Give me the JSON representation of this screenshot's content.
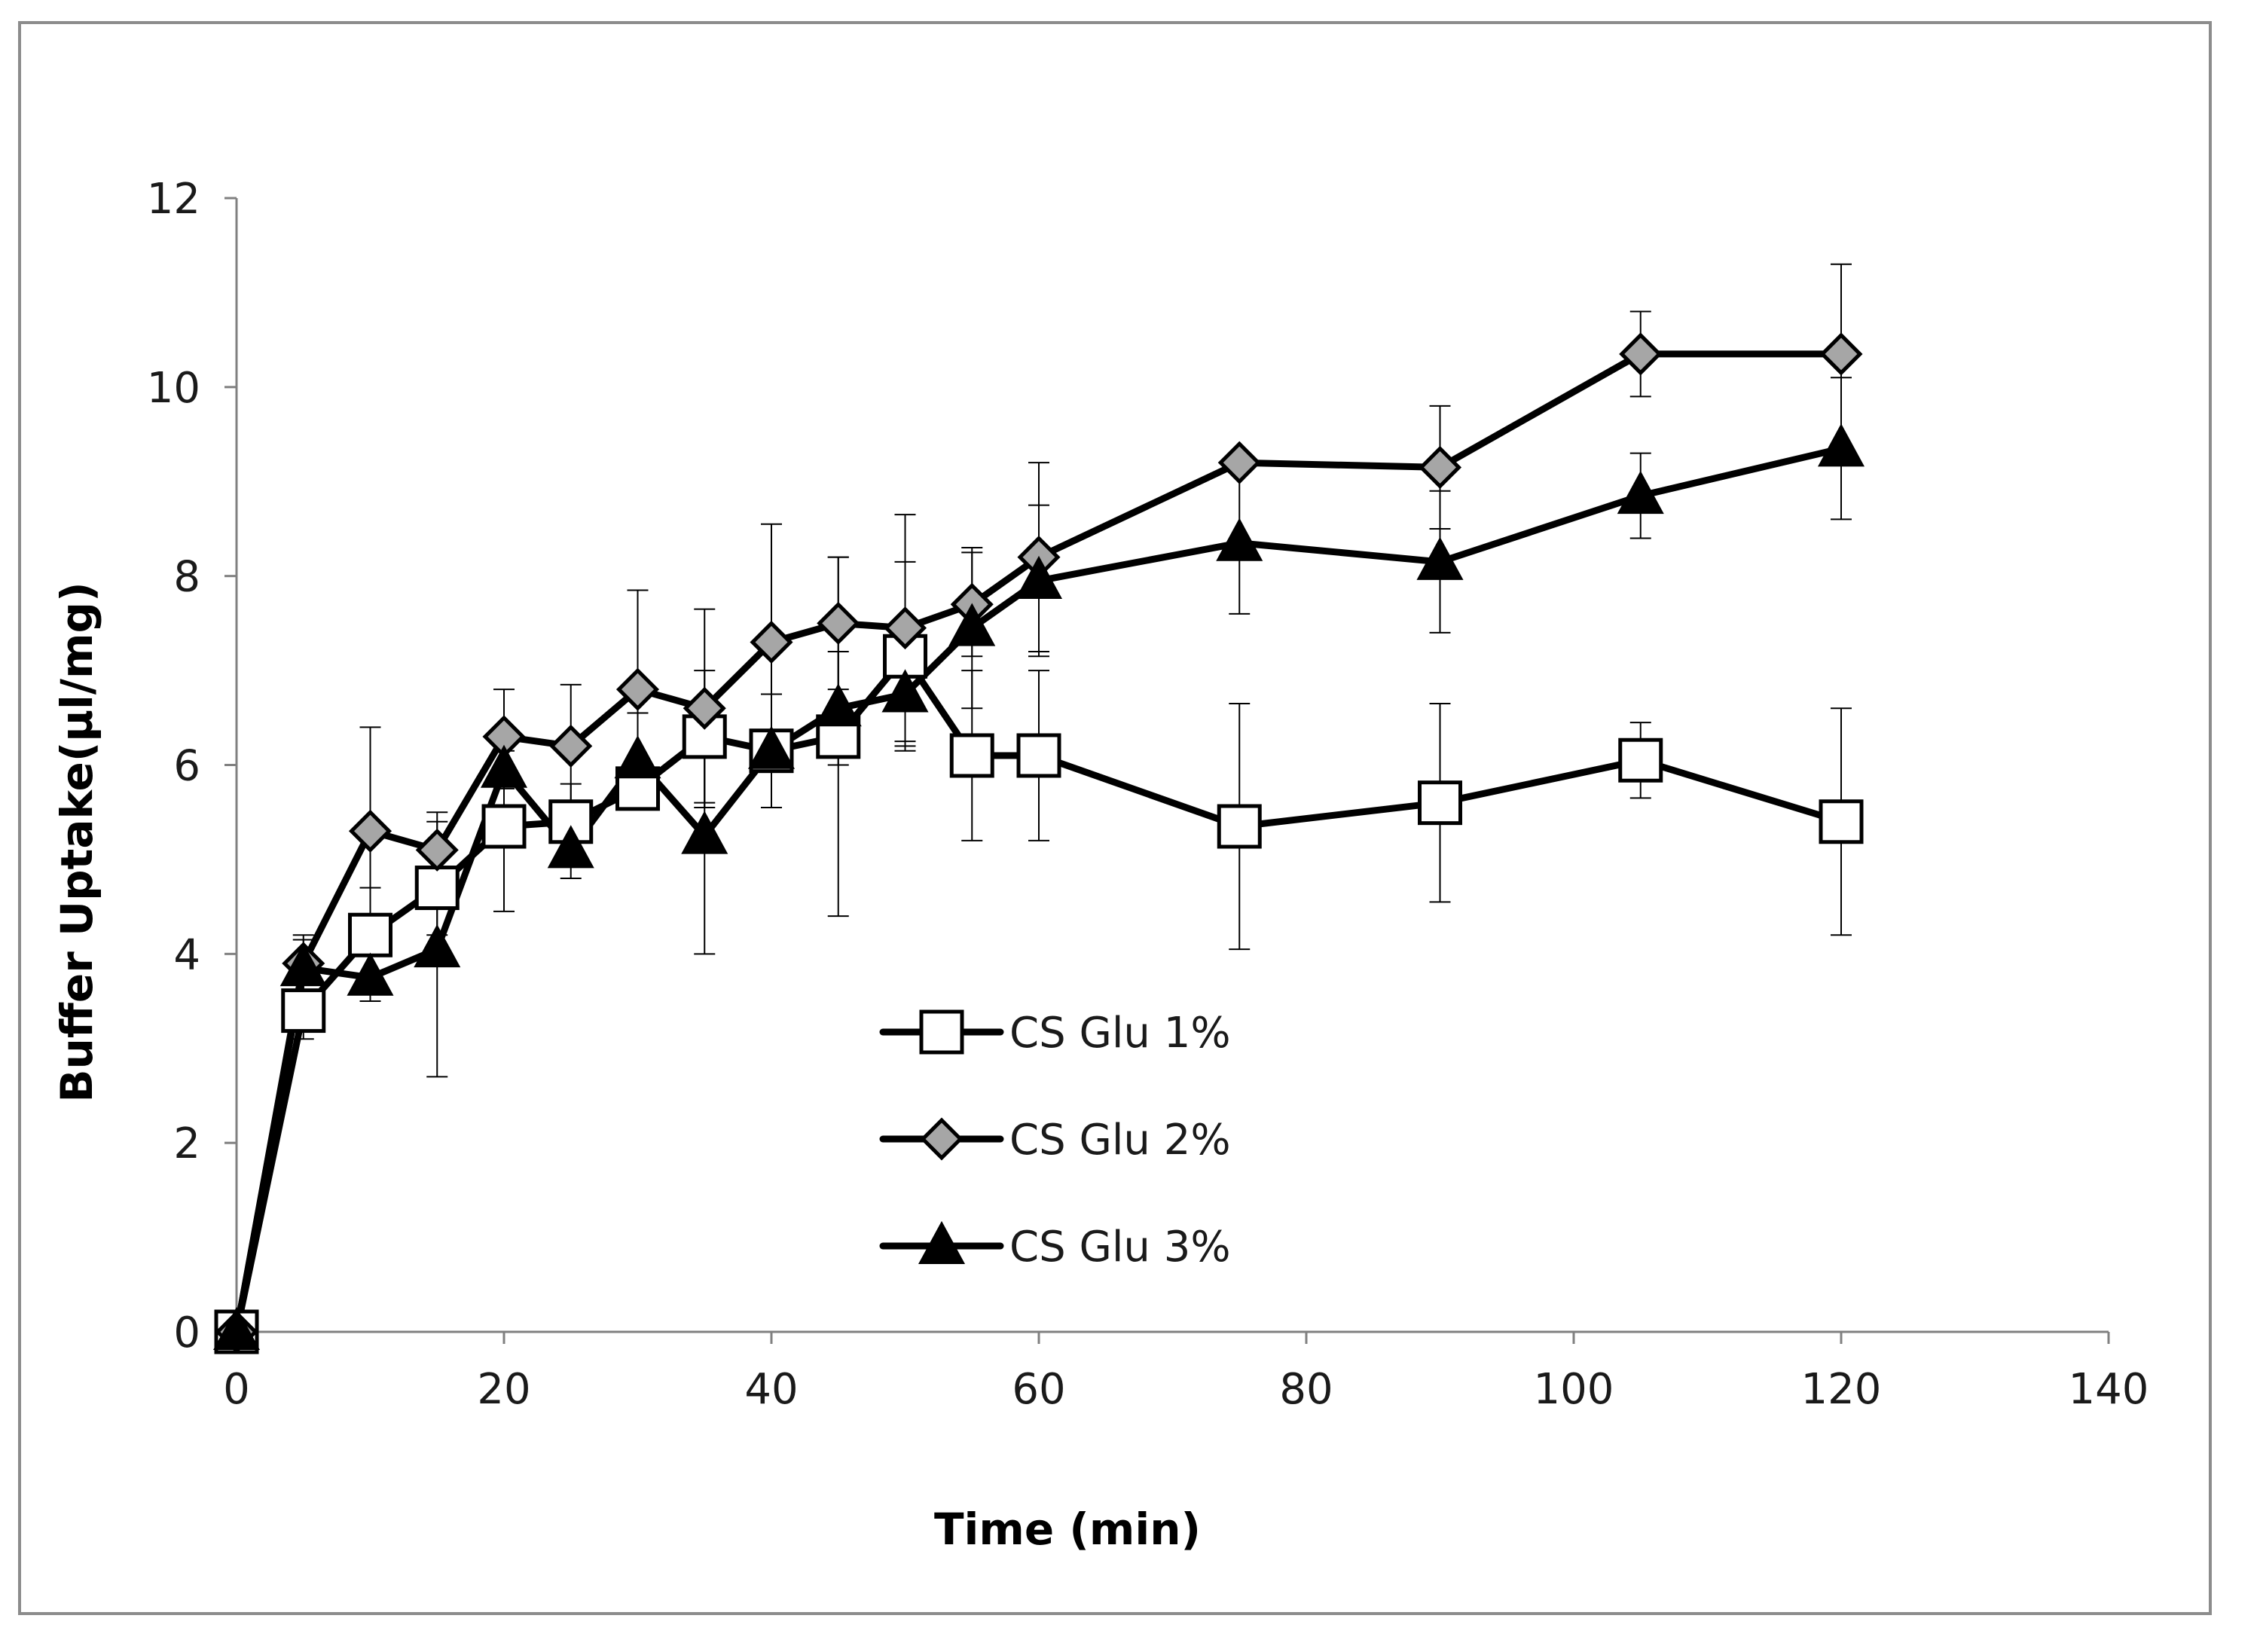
{
  "chart_data": {
    "type": "line",
    "title": "",
    "xlabel": "Time (min)",
    "ylabel": "Buffer Uptake(µl/mg)",
    "xlim": [
      0,
      140
    ],
    "ylim": [
      0,
      12
    ],
    "xticks": [
      0,
      20,
      40,
      60,
      80,
      100,
      120,
      140
    ],
    "yticks": [
      0,
      2,
      4,
      6,
      8,
      10,
      12
    ],
    "grid": false,
    "legend_position": "center",
    "colors": {
      "line": "#000000",
      "gray_marker": "#a6a6a6",
      "axis": "#808080"
    },
    "series": [
      {
        "name": "CS Glu 1%",
        "marker": "square-open",
        "x": [
          0,
          5,
          10,
          15,
          20,
          25,
          30,
          35,
          40,
          45,
          50,
          55,
          60,
          75,
          90,
          105,
          120
        ],
        "y": [
          0,
          3.4,
          4.2,
          4.7,
          5.35,
          5.4,
          5.75,
          6.3,
          6.15,
          6.3,
          7.15,
          6.1,
          6.1,
          5.35,
          5.6,
          6.05,
          5.4
        ],
        "err": [
          0,
          0.3,
          0.5,
          0.5,
          0.9,
          0.4,
          0.2,
          0.7,
          0.6,
          1.9,
          1.0,
          0.9,
          0.9,
          1.3,
          1.05,
          0.4,
          1.2
        ]
      },
      {
        "name": "CS Glu 2%",
        "marker": "diamond-gray",
        "x": [
          0,
          5,
          10,
          15,
          20,
          25,
          30,
          35,
          40,
          45,
          50,
          55,
          60,
          75,
          90,
          105,
          120
        ],
        "y": [
          0,
          3.9,
          5.3,
          5.1,
          6.3,
          6.2,
          6.8,
          6.6,
          7.3,
          7.5,
          7.45,
          7.7,
          8.2,
          9.2,
          9.15,
          10.35,
          10.35
        ],
        "err": [
          0,
          0.3,
          1.1,
          0.4,
          0.5,
          0.65,
          1.05,
          1.05,
          1.25,
          0.7,
          1.2,
          0.55,
          1.0,
          0.1,
          0.65,
          0.45,
          0.95
        ]
      },
      {
        "name": "CS Glu 3%",
        "marker": "triangle-filled",
        "x": [
          0,
          5,
          10,
          15,
          20,
          25,
          30,
          35,
          40,
          45,
          50,
          55,
          60,
          75,
          90,
          105,
          120
        ],
        "y": [
          0,
          3.85,
          3.75,
          4.05,
          5.95,
          5.1,
          6.05,
          5.25,
          6.15,
          6.6,
          6.75,
          7.45,
          7.95,
          8.35,
          8.15,
          8.85,
          9.35
        ],
        "err": [
          0,
          0.3,
          0.25,
          1.35,
          0.2,
          0.3,
          0.5,
          1.25,
          0.6,
          0.6,
          0.55,
          0.85,
          0.8,
          0.75,
          0.75,
          0.45,
          0.75
        ]
      }
    ]
  }
}
